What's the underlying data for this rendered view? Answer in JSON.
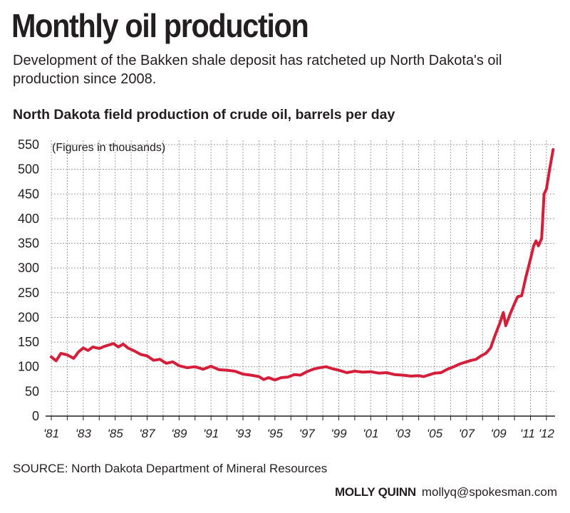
{
  "header": {
    "title": "Monthly oil production",
    "subtitle": "Development of the Bakken shale deposit has ratcheted up North Dakota's oil production since 2008."
  },
  "chart_heading": "North Dakota field production of crude oil, barrels per day",
  "chart_data": {
    "type": "line",
    "title": "North Dakota field production of crude oil, barrels per day",
    "annotation": "(Figures in thousands)",
    "xlabel": "",
    "ylabel": "",
    "ylim": [
      0,
      550
    ],
    "yticks": [
      0,
      50,
      100,
      150,
      200,
      250,
      300,
      350,
      400,
      450,
      500,
      550
    ],
    "xlim": [
      1981.0,
      2012.45
    ],
    "xticks": [
      {
        "value": 1981,
        "label": "'81"
      },
      {
        "value": 1983,
        "label": "'83"
      },
      {
        "value": 1985,
        "label": "'85"
      },
      {
        "value": 1987,
        "label": "'87"
      },
      {
        "value": 1989,
        "label": "'89"
      },
      {
        "value": 1991,
        "label": "'91"
      },
      {
        "value": 1993,
        "label": "'93"
      },
      {
        "value": 1995,
        "label": "'95"
      },
      {
        "value": 1997,
        "label": "'97"
      },
      {
        "value": 1999,
        "label": "'99"
      },
      {
        "value": 2001,
        "label": "'01"
      },
      {
        "value": 2003,
        "label": "'03"
      },
      {
        "value": 2005,
        "label": "'05"
      },
      {
        "value": 2007,
        "label": "'07"
      },
      {
        "value": 2009,
        "label": "'09"
      },
      {
        "value": 2011,
        "label": "'11"
      },
      {
        "value": 2012,
        "label": "'12"
      }
    ],
    "grid": true,
    "line_color": "#d51f3a",
    "series": [
      {
        "x": [
          1981.0,
          1981.3,
          1981.6,
          1982.0,
          1982.4,
          1982.7,
          1983.0,
          1983.3,
          1983.6,
          1984.0,
          1984.3,
          1984.6,
          1984.9,
          1985.2,
          1985.5,
          1985.8,
          1986.2,
          1986.6,
          1987.0,
          1987.4,
          1987.8,
          1988.2,
          1988.6,
          1989.0,
          1989.5,
          1990.0,
          1990.5,
          1991.0,
          1991.5,
          1992.0,
          1992.5,
          1993.0,
          1993.5,
          1994.0,
          1994.3,
          1994.6,
          1995.0,
          1995.4,
          1995.8,
          1996.2,
          1996.6,
          1997.0,
          1997.4,
          1997.8,
          1998.2,
          1998.6,
          1999.0,
          1999.5,
          2000.0,
          2000.5,
          2001.0,
          2001.5,
          2002.0,
          2002.5,
          2003.0,
          2003.5,
          2004.0,
          2004.3,
          2004.6,
          2005.0,
          2005.4,
          2005.8,
          2006.2,
          2006.6,
          2007.0,
          2007.3,
          2007.6,
          2007.9,
          2008.2,
          2008.5,
          2008.8,
          2009.1,
          2009.3,
          2009.45,
          2009.7,
          2010.0,
          2010.2,
          2010.45,
          2010.7,
          2011.0,
          2011.2,
          2011.35,
          2011.5,
          2011.7,
          2011.85,
          2012.0,
          2012.2,
          2012.42
        ],
        "y": [
          120,
          112,
          127,
          124,
          117,
          130,
          138,
          133,
          140,
          137,
          141,
          144,
          147,
          140,
          146,
          138,
          132,
          125,
          122,
          113,
          115,
          107,
          110,
          102,
          98,
          100,
          95,
          101,
          94,
          93,
          91,
          85,
          83,
          80,
          74,
          78,
          73,
          78,
          79,
          84,
          83,
          90,
          95,
          98,
          100,
          96,
          93,
          88,
          91,
          89,
          90,
          87,
          88,
          84,
          83,
          81,
          82,
          80,
          83,
          87,
          88,
          95,
          100,
          106,
          110,
          113,
          115,
          122,
          127,
          138,
          165,
          190,
          210,
          183,
          205,
          228,
          242,
          244,
          280,
          318,
          345,
          355,
          345,
          360,
          450,
          460,
          500,
          540
        ]
      }
    ]
  },
  "footer": {
    "source": "SOURCE:  North Dakota Department of Mineral Resources",
    "credit_name": "MOLLY QUINN",
    "credit_email": "mollyq@spokesman.com"
  }
}
